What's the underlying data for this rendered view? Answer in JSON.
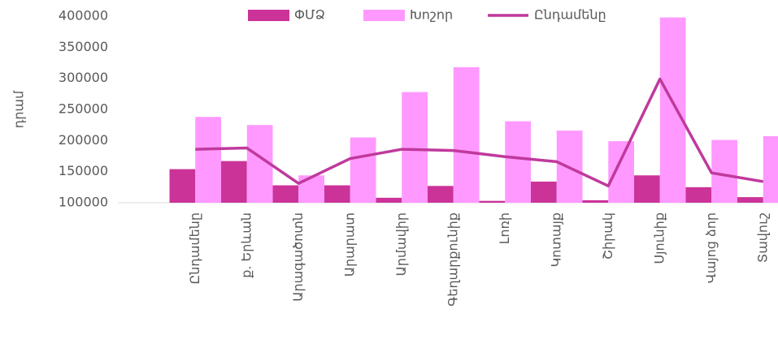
{
  "chart_data": {
    "type": "bar",
    "ylabel": "դրամ",
    "categories": [
      null,
      "Ընդամենը",
      "ք. Երևան",
      "Արագածոտն",
      "Արարատ",
      "Արմավիր",
      "Գեղարքունիք",
      "Լոռի",
      "Կոտայք",
      "Շիրակ",
      "Սյունիք",
      "Վայոց ձոր",
      "Տավուշ"
    ],
    "series": [
      {
        "name": "ՓՄՁ",
        "type": "bar",
        "color": "#cc3399",
        "values": [
          null,
          154000,
          167000,
          128000,
          128000,
          108000,
          127000,
          103000,
          134000,
          104000,
          144000,
          125000,
          109000
        ]
      },
      {
        "name": "Խոշոր",
        "type": "bar",
        "color": "#ff99ff",
        "values": [
          null,
          238000,
          225000,
          144000,
          205000,
          278000,
          318000,
          231000,
          216000,
          199000,
          398000,
          201000,
          207000
        ]
      },
      {
        "name": "Ընդամենը",
        "type": "line",
        "color": "#c0399c",
        "values": [
          null,
          186000,
          188000,
          131000,
          171000,
          186000,
          184000,
          174000,
          166000,
          127000,
          299000,
          148000,
          134000
        ]
      }
    ],
    "ylim": [
      100000,
      400000
    ],
    "yticks": [
      100000,
      150000,
      200000,
      250000,
      300000,
      350000,
      400000
    ],
    "legend": "top"
  }
}
